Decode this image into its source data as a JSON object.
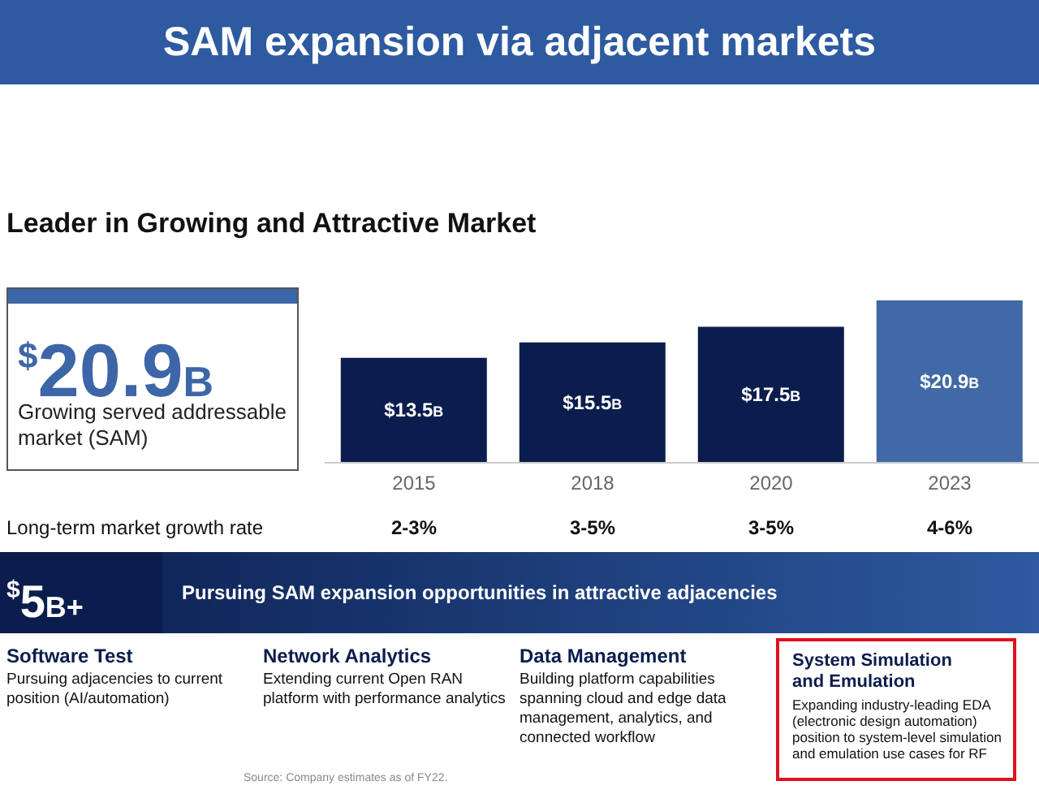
{
  "chart_data": {
    "type": "bar",
    "title": "SAM expansion via adjacent markets",
    "subtitle": "Leader in Growing and Attractive Market",
    "categories": [
      "2015",
      "2018",
      "2020",
      "2023"
    ],
    "values": [
      13.5,
      15.5,
      17.5,
      20.9
    ],
    "colors": [
      "#0b1d4d",
      "#0b1d4d",
      "#0b1d4d",
      "#4169a6"
    ],
    "data_labels": true,
    "value_labels": [
      "$13.5B",
      "$15.5B",
      "$17.5B",
      "$20.9B"
    ],
    "annotations": [
      "$^{$}$20.9B",
      "Growing served addressable market (SAM)",
      "Long-term market growth rate",
      "2-3%",
      "3-5%",
      "3-5%",
      "4-6%",
      "$^{$}$5B+",
      "Pursuing SAM expansion opportunities in attractive adjacencies",
      "Software Test",
      "Pursuing adjacencies to current position (AI/automation)",
      "Network Analytics",
      "Extending current Open RAN platform with performance analytics",
      "Data Management",
      "Building platform capabilities spanning cloud and edge data management, analytics, and connected workflow",
      "System Simulation and Emulation",
      "Expanding industry-leading EDA (electronic design automation) position to system-level simulation and emulation use cases for RF",
      "Source: Company estimates as of FY22."
    ]
  }
}
